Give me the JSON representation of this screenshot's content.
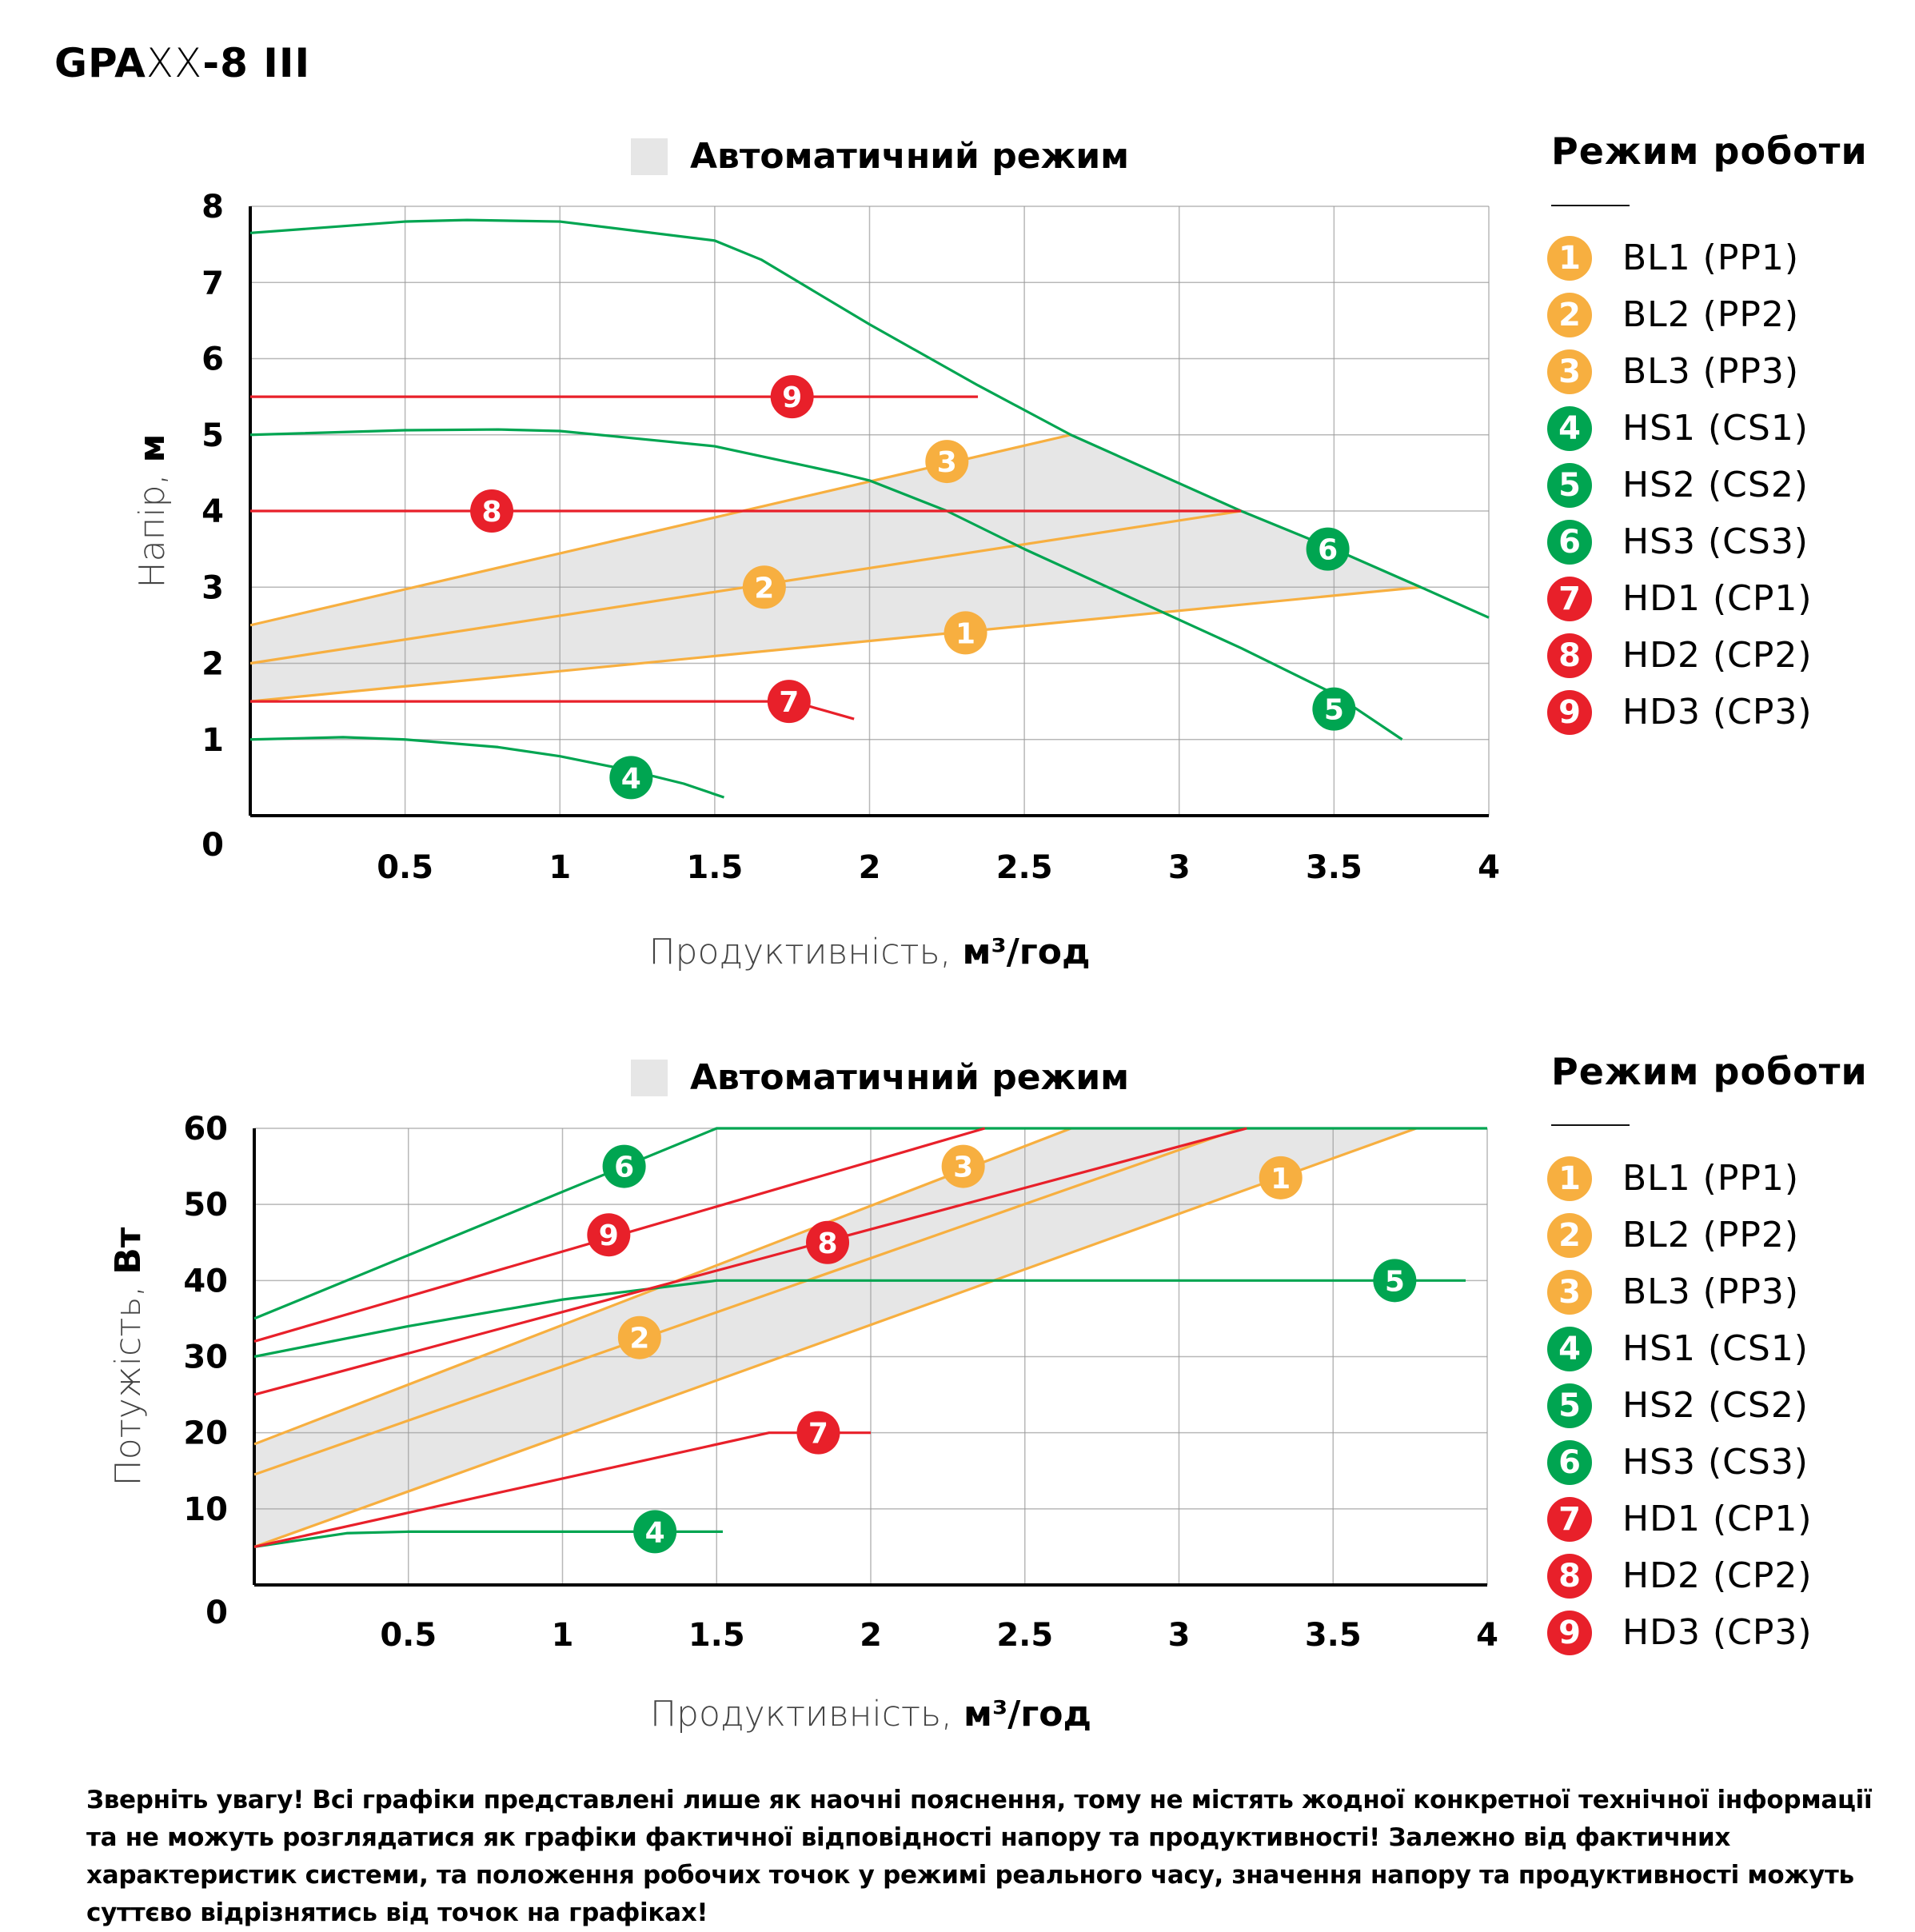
{
  "page": {
    "title_bold_1": "GPA",
    "title_thin": "XX",
    "title_bold_2": "-8 III",
    "footer_text": "Зверніть увагу! Всі графіки представлені лише як наочні пояснення, тому не містять жодної конкретної технічної інформації та не можуть розглядатися як графіки фактичної відповідності напору та продуктивності! Залежно від фактичних характеристик системи, та положення робочих точок у режимі реального часу, значення напору та продуктивності можуть суттєво відрізнятись від точок на графіках!"
  },
  "colors": {
    "orange": "#F7AF40",
    "green": "#00A551",
    "red": "#E8202A",
    "auto_area": "#E6E6E6",
    "grid": "#9a9a9a"
  },
  "legend": {
    "title": "Режим роботи",
    "items": [
      {
        "num": "1",
        "label": "BL1 (PP1)",
        "color": "orange"
      },
      {
        "num": "2",
        "label": "BL2 (PP2)",
        "color": "orange"
      },
      {
        "num": "3",
        "label": "BL3 (PP3)",
        "color": "orange"
      },
      {
        "num": "4",
        "label": "HS1 (CS1)",
        "color": "green"
      },
      {
        "num": "5",
        "label": "HS2 (CS2)",
        "color": "green"
      },
      {
        "num": "6",
        "label": "HS3 (CS3)",
        "color": "green"
      },
      {
        "num": "7",
        "label": "HD1 (CP1)",
        "color": "red"
      },
      {
        "num": "8",
        "label": "HD2 (CP2)",
        "color": "red"
      },
      {
        "num": "9",
        "label": "HD3 (CP3)",
        "color": "red"
      }
    ]
  },
  "chart_data": [
    {
      "type": "line",
      "title": "",
      "area_legend": "Автоматичний режим",
      "xlabel": "Продуктивність, ",
      "xlabel_unit": "м³/год",
      "ylabel": "Напір, ",
      "ylabel_unit": "м",
      "xlim": [
        0,
        4
      ],
      "ylim": [
        0,
        8
      ],
      "x_ticks": [
        "0.5",
        "1",
        "1.5",
        "2",
        "2.5",
        "3",
        "3.5",
        "4"
      ],
      "x_tick_values": [
        0.5,
        1,
        1.5,
        2,
        2.5,
        3,
        3.5,
        4
      ],
      "y_ticks": [
        "0",
        "1",
        "2",
        "3",
        "4",
        "5",
        "6",
        "7",
        "8"
      ],
      "y_tick_values": [
        0,
        1,
        2,
        3,
        4,
        5,
        6,
        7,
        8
      ],
      "grid": true,
      "auto_area": [
        [
          0,
          1.5
        ],
        [
          3.78,
          3.0
        ],
        [
          3.5,
          3.5
        ],
        [
          3.2,
          4.0
        ],
        [
          2.65,
          5.0
        ],
        [
          0,
          2.5
        ]
      ],
      "series": [
        {
          "name": "BL1 (PP1)",
          "num": "1",
          "color": "orange",
          "points": [
            [
              0,
              1.5
            ],
            [
              3.78,
              3.0
            ]
          ],
          "badge": [
            2.31,
            2.4
          ]
        },
        {
          "name": "BL2 (PP2)",
          "num": "2",
          "color": "orange",
          "points": [
            [
              0,
              2.0
            ],
            [
              3.2,
              4.0
            ]
          ],
          "badge": [
            1.66,
            3.0
          ]
        },
        {
          "name": "BL3 (PP3)",
          "num": "3",
          "color": "orange",
          "points": [
            [
              0,
              2.5
            ],
            [
              2.65,
              5.0
            ]
          ],
          "badge": [
            2.25,
            4.65
          ]
        },
        {
          "name": "HS1 (CS1)",
          "num": "4",
          "color": "green",
          "points": [
            [
              0,
              1.0
            ],
            [
              0.3,
              1.03
            ],
            [
              0.5,
              1.0
            ],
            [
              0.8,
              0.9
            ],
            [
              1.0,
              0.78
            ],
            [
              1.22,
              0.6
            ],
            [
              1.4,
              0.42
            ],
            [
              1.53,
              0.24
            ]
          ],
          "badge": [
            1.23,
            0.5
          ]
        },
        {
          "name": "HS2 (CS2)",
          "num": "5",
          "color": "green",
          "points": [
            [
              0,
              5.0
            ],
            [
              0.5,
              5.06
            ],
            [
              0.8,
              5.07
            ],
            [
              1.0,
              5.05
            ],
            [
              1.5,
              4.85
            ],
            [
              1.9,
              4.5
            ],
            [
              2.0,
              4.4
            ],
            [
              2.25,
              4.0
            ],
            [
              2.5,
              3.5
            ],
            [
              2.85,
              2.85
            ],
            [
              3.2,
              2.2
            ],
            [
              3.5,
              1.6
            ],
            [
              3.72,
              1.0
            ]
          ],
          "badge": [
            3.5,
            1.4
          ]
        },
        {
          "name": "HS3 (CS3)",
          "num": "6",
          "color": "green",
          "points": [
            [
              0,
              7.65
            ],
            [
              0.5,
              7.8
            ],
            [
              0.7,
              7.82
            ],
            [
              1.0,
              7.8
            ],
            [
              1.5,
              7.55
            ],
            [
              1.65,
              7.3
            ],
            [
              2.0,
              6.45
            ],
            [
              2.35,
              5.65
            ],
            [
              2.65,
              5.0
            ],
            [
              3.2,
              4.0
            ],
            [
              3.5,
              3.5
            ],
            [
              3.78,
              3.0
            ],
            [
              4.0,
              2.6
            ]
          ],
          "badge": [
            3.48,
            3.5
          ]
        },
        {
          "name": "HD1 (CP1)",
          "num": "7",
          "color": "red",
          "points": [
            [
              0,
              1.5
            ],
            [
              1.75,
              1.5
            ],
            [
              1.95,
              1.27
            ]
          ],
          "badge": [
            1.74,
            1.5
          ]
        },
        {
          "name": "HD2 (CP2)",
          "num": "8",
          "color": "red",
          "points": [
            [
              0,
              4.0
            ],
            [
              3.2,
              4.0
            ]
          ],
          "badge": [
            0.78,
            4.0
          ]
        },
        {
          "name": "HD3 (CP3)",
          "num": "9",
          "color": "red",
          "points": [
            [
              0,
              5.5
            ],
            [
              2.35,
              5.5
            ]
          ],
          "badge": [
            1.75,
            5.5
          ]
        }
      ]
    },
    {
      "type": "line",
      "title": "",
      "area_legend": "Автоматичний режим",
      "xlabel": "Продуктивність, ",
      "xlabel_unit": "м³/год",
      "ylabel": "Потужість, ",
      "ylabel_unit": "Вт",
      "xlim": [
        0,
        4
      ],
      "ylim": [
        0,
        60
      ],
      "x_ticks": [
        "0.5",
        "1",
        "1.5",
        "2",
        "2.5",
        "3",
        "3.5",
        "4"
      ],
      "x_tick_values": [
        0.5,
        1,
        1.5,
        2,
        2.5,
        3,
        3.5,
        4
      ],
      "y_ticks": [
        "0",
        "10",
        "20",
        "30",
        "40",
        "50",
        "60"
      ],
      "y_tick_values": [
        0,
        10,
        20,
        30,
        40,
        50,
        60
      ],
      "grid": true,
      "auto_area": [
        [
          0,
          5
        ],
        [
          3.77,
          60
        ],
        [
          2.65,
          60
        ],
        [
          0,
          18.5
        ]
      ],
      "series": [
        {
          "name": "BL1 (PP1)",
          "num": "1",
          "color": "orange",
          "points": [
            [
              0,
              5
            ],
            [
              3.77,
              60
            ]
          ],
          "badge": [
            3.33,
            53.5
          ]
        },
        {
          "name": "BL2 (PP2)",
          "num": "2",
          "color": "orange",
          "points": [
            [
              0,
              14.5
            ],
            [
              3.2,
              60
            ]
          ],
          "badge": [
            1.25,
            32.5
          ]
        },
        {
          "name": "BL3 (PP3)",
          "num": "3",
          "color": "orange",
          "points": [
            [
              0,
              18.5
            ],
            [
              2.65,
              60
            ]
          ],
          "badge": [
            2.3,
            55
          ]
        },
        {
          "name": "HS1 (CS1)",
          "num": "4",
          "color": "green",
          "points": [
            [
              0,
              5
            ],
            [
              0.3,
              6.8
            ],
            [
              0.5,
              7
            ],
            [
              1.52,
              7
            ]
          ],
          "badge": [
            1.3,
            7
          ]
        },
        {
          "name": "HS2 (CS2)",
          "num": "5",
          "color": "green",
          "points": [
            [
              0,
              30
            ],
            [
              0.5,
              34
            ],
            [
              1.0,
              37.5
            ],
            [
              1.5,
              40
            ],
            [
              3.93,
              40
            ]
          ],
          "badge": [
            3.7,
            40
          ]
        },
        {
          "name": "HS3 (CS3)",
          "num": "6",
          "color": "green",
          "points": [
            [
              0,
              35
            ],
            [
              1.5,
              60
            ],
            [
              4.0,
              60
            ]
          ],
          "badge": [
            1.2,
            55
          ]
        },
        {
          "name": "HD1 (CP1)",
          "num": "7",
          "color": "red",
          "points": [
            [
              0,
              5
            ],
            [
              1.67,
              20
            ],
            [
              2.0,
              20
            ]
          ],
          "badge": [
            1.83,
            20
          ]
        },
        {
          "name": "HD2 (CP2)",
          "num": "8",
          "color": "red",
          "points": [
            [
              0,
              25
            ],
            [
              3.22,
              60
            ]
          ],
          "badge": [
            1.86,
            45
          ]
        },
        {
          "name": "HD3 (CP3)",
          "num": "9",
          "color": "red",
          "points": [
            [
              0,
              32
            ],
            [
              2.37,
              60
            ]
          ],
          "badge": [
            1.15,
            46
          ]
        }
      ]
    }
  ]
}
